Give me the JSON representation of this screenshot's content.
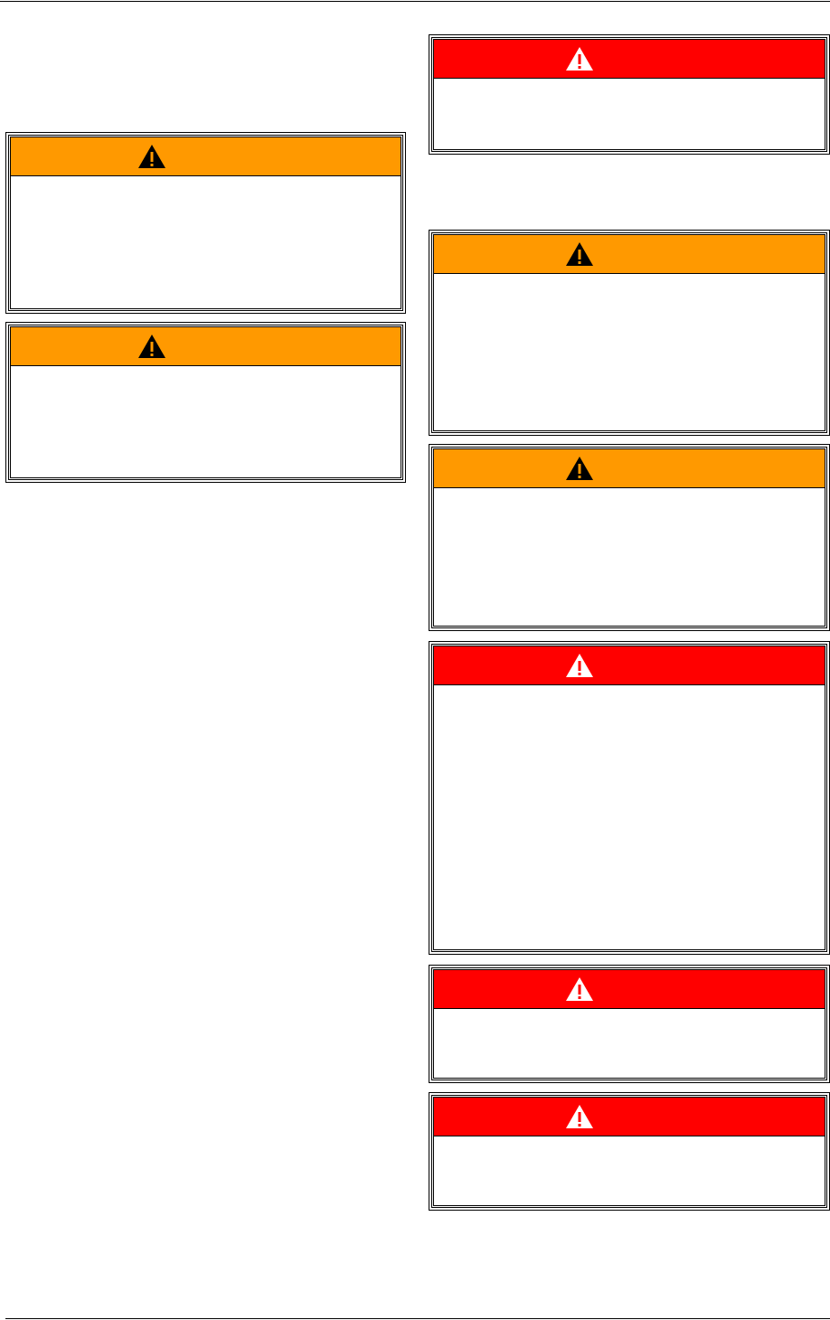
{
  "colors": {
    "warning": "#FF9900",
    "danger": "#FF0000",
    "border": "#000000"
  },
  "icons": {
    "warning": "warning-triangle-icon",
    "danger": "danger-triangle-icon"
  },
  "left_column": {
    "boxes": [
      {
        "level": "warning"
      },
      {
        "level": "warning"
      }
    ]
  },
  "right_column": {
    "boxes": [
      {
        "level": "danger"
      },
      {
        "level": "warning"
      },
      {
        "level": "warning"
      },
      {
        "level": "danger"
      },
      {
        "level": "danger"
      },
      {
        "level": "danger"
      }
    ]
  }
}
